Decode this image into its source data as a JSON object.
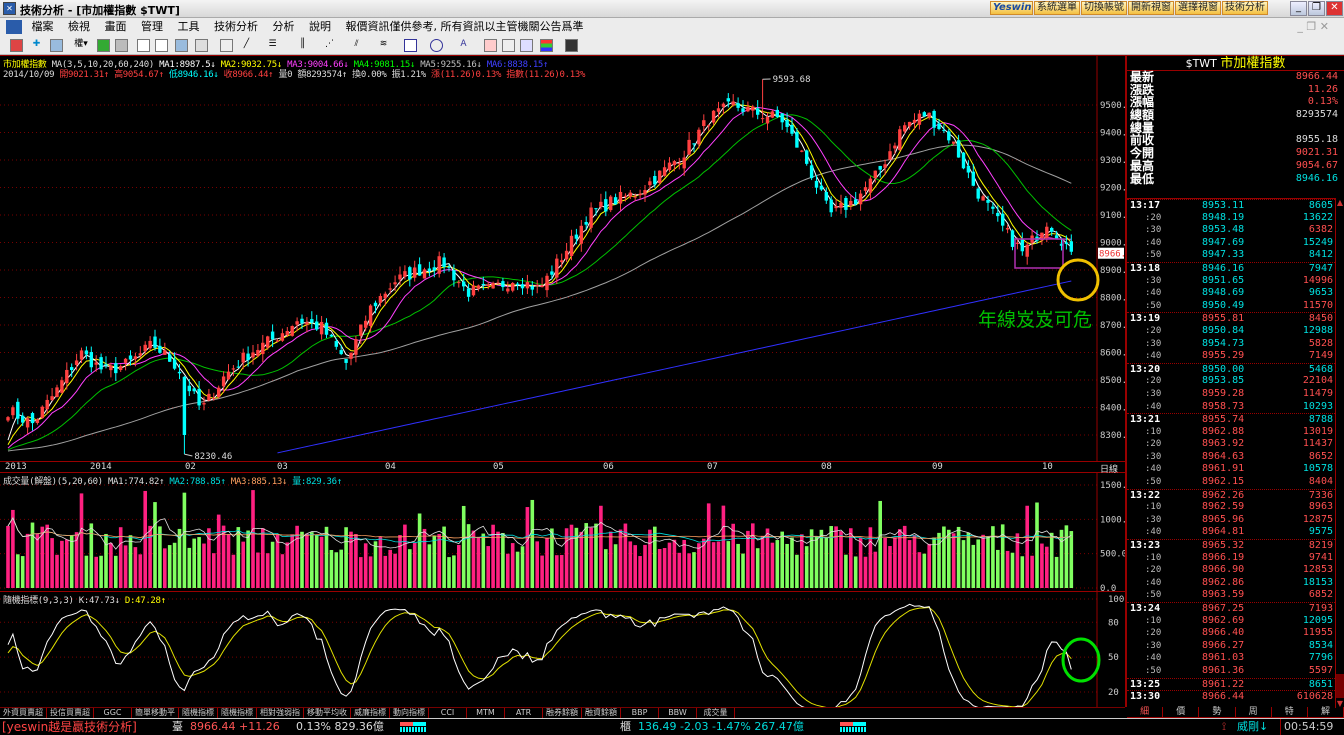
{
  "window": {
    "title": "技術分析 - [市加權指數 $TWT]",
    "app_buttons": [
      "系統選單",
      "切換帳號",
      "開新視窗",
      "選擇視窗",
      "技術分析"
    ],
    "logo": "Yeswin"
  },
  "menu": [
    "檔案",
    "檢視",
    "畫面",
    "管理",
    "工具",
    "技術分析",
    "分析",
    "說明",
    "報價資訊僅供參考, 所有資訊以主管機關公告爲準"
  ],
  "toolbar": {
    "rights_label": "權",
    "text_tool": "A"
  },
  "chart_header": {
    "symbol": "市加權指數",
    "ma_params": "MA(3,5,10,20,60,240)",
    "ma": [
      {
        "label": "MA1:8987.5",
        "arrow": "↓",
        "color": "#ffffff"
      },
      {
        "label": "MA2:9032.75",
        "arrow": "↓",
        "color": "#ffff00"
      },
      {
        "label": "MA3:9004.66",
        "arrow": "↓",
        "color": "#ff40ff"
      },
      {
        "label": "MA4:9081.15",
        "arrow": "↓",
        "color": "#00ff00"
      },
      {
        "label": "MA5:9255.16",
        "arrow": "↓",
        "color": "#c0c0c0"
      },
      {
        "label": "MA6:8838.15",
        "arrow": "↑",
        "color": "#4040ff"
      }
    ],
    "date": "2014/10/09",
    "ohlc": [
      {
        "t": "開9021.31↑",
        "c": "#ff4040"
      },
      {
        "t": "高9054.67↑",
        "c": "#ff4040"
      },
      {
        "t": "低8946.16↓",
        "c": "#00ffff"
      },
      {
        "t": "收8966.44↑",
        "c": "#ff4040"
      },
      {
        "t": "量0",
        "c": "#dddddd"
      },
      {
        "t": "額8293574↑",
        "c": "#dddddd"
      },
      {
        "t": "換0.00%",
        "c": "#dddddd"
      },
      {
        "t": "振1.21%",
        "c": "#dddddd"
      },
      {
        "t": "漲(11.26)0.13%",
        "c": "#ff4040"
      },
      {
        "t": "指數(11.26)0.13%",
        "c": "#ff4040"
      }
    ]
  },
  "chart_data": {
    "type": "candlestick",
    "approx_closes": [
      8390,
      8340,
      8460,
      8600,
      8530,
      8560,
      8630,
      8550,
      8390,
      8520,
      8600,
      8650,
      8720,
      8690,
      8560,
      8760,
      8860,
      8900,
      8930,
      8820,
      8830,
      8870,
      8830,
      8960,
      9100,
      9150,
      9180,
      9250,
      9330,
      9450,
      9500,
      9470,
      9450,
      9300,
      9100,
      9150,
      9250,
      9420,
      9470,
      9380,
      9200,
      9070,
      8960,
      9080,
      8966.44
    ],
    "high_label": "9593.68",
    "low_label": "8230.46",
    "last_price_tag": "8966.4",
    "price_ticks": [
      "9500.0",
      "9400.0",
      "9300.0",
      "9200.0",
      "9100.0",
      "9000.0",
      "8900.0",
      "8800.0",
      "8700.0",
      "8600.0",
      "8500.0",
      "8400.0",
      "8300.0"
    ],
    "date_ticks": [
      "2013",
      "2014",
      "02",
      "03",
      "04",
      "05",
      "06",
      "07",
      "08",
      "09",
      "10"
    ],
    "date_axis_label": "日線",
    "annotation": "年線岌岌可危",
    "colors": {
      "up": "#ff4040",
      "down": "#00ffff",
      "ma1": "#ffffff",
      "ma2": "#ffff00",
      "ma3": "#ff40ff",
      "ma4": "#00c000",
      "ma5": "#a0a0a0",
      "ma6": "#3030ff"
    }
  },
  "volume_pane": {
    "title": "成交量(解盤)(5,20,60)",
    "ma": [
      {
        "label": "MA1:774.82↑",
        "color": "#dddddd"
      },
      {
        "label": "MA2:788.85↑",
        "color": "#00e0e0"
      },
      {
        "label": "MA3:885.13↓",
        "color": "#ffa060"
      },
      {
        "label": "量:829.36↑",
        "color": "#00e0e0"
      }
    ],
    "ticks": [
      "1500.0",
      "1000.0",
      "500.0",
      "0.0"
    ],
    "last_volume": 829.36
  },
  "kd_pane": {
    "title": "隨機指標(9,3,3)",
    "k": "K:47.73↓",
    "d": "D:47.28↑",
    "ticks": [
      "100",
      "80",
      "50",
      "20"
    ]
  },
  "indicator_tabs": [
    "外資買賣超",
    "投信買賣超",
    "GGC",
    "簡單移動平",
    "隨機指標",
    "隨機指標",
    "相對強弱指",
    "移動平均收",
    "威廉指標",
    "動向指標",
    "CCI",
    "MTM",
    "ATR",
    "融券餘額",
    "融資餘額",
    "BBP",
    "BBW",
    "成交量"
  ],
  "quote": {
    "symbol": "$TWT",
    "name": "市加權指數",
    "prev_close": 8955.18,
    "rows": [
      {
        "l": "最新",
        "v": "8966.44",
        "c": "#ff5050"
      },
      {
        "l": "漲跌",
        "v": "11.26",
        "c": "#ff5050"
      },
      {
        "l": "漲幅",
        "v": "0.13%",
        "c": "#ff5050"
      },
      {
        "l": "總額",
        "v": "8293574",
        "c": "#dddddd"
      },
      {
        "l": "總量",
        "v": "",
        "c": "#dddddd"
      },
      {
        "l": "前收",
        "v": "8955.18",
        "c": "#dddddd"
      },
      {
        "l": "今開",
        "v": "9021.31",
        "c": "#ff5050"
      },
      {
        "l": "最高",
        "v": "9054.67",
        "c": "#ff5050"
      },
      {
        "l": "最低",
        "v": "8946.16",
        "c": "#00e0e0"
      }
    ],
    "ticks": [
      [
        "13:17",
        "8953.11",
        "8605",
        "d"
      ],
      [
        ":20",
        "8948.19",
        "13622",
        "d"
      ],
      [
        ":30",
        "8953.48",
        "6382",
        "u"
      ],
      [
        ":40",
        "8947.69",
        "15249",
        "d"
      ],
      [
        ":50",
        "8947.33",
        "8412",
        "d"
      ],
      [
        "13:18",
        "8946.16",
        "7947",
        "d"
      ],
      [
        ":30",
        "8951.65",
        "14996",
        "u"
      ],
      [
        ":40",
        "8948.69",
        "9653",
        "d"
      ],
      [
        ":50",
        "8950.49",
        "11570",
        "u"
      ],
      [
        "13:19",
        "8955.81",
        "8450",
        "u"
      ],
      [
        ":20",
        "8950.84",
        "12988",
        "d"
      ],
      [
        ":30",
        "8954.73",
        "5828",
        "u"
      ],
      [
        ":40",
        "8955.29",
        "7149",
        "u"
      ],
      [
        "13:20",
        "8950.00",
        "5468",
        "d"
      ],
      [
        ":20",
        "8953.85",
        "22104",
        "u"
      ],
      [
        ":30",
        "8959.28",
        "11479",
        "u"
      ],
      [
        ":40",
        "8958.73",
        "10293",
        "d"
      ],
      [
        "13:21",
        "8955.74",
        "8788",
        "d"
      ],
      [
        ":10",
        "8962.88",
        "13019",
        "u"
      ],
      [
        ":20",
        "8963.92",
        "11437",
        "u"
      ],
      [
        ":30",
        "8964.63",
        "8652",
        "u"
      ],
      [
        ":40",
        "8961.91",
        "10578",
        "d"
      ],
      [
        ":50",
        "8962.15",
        "8404",
        "u"
      ],
      [
        "13:22",
        "8962.26",
        "7336",
        "u"
      ],
      [
        ":10",
        "8962.59",
        "8963",
        "u"
      ],
      [
        ":30",
        "8965.96",
        "12875",
        "u"
      ],
      [
        ":40",
        "8964.81",
        "9575",
        "d"
      ],
      [
        "13:23",
        "8965.32",
        "8219",
        "u"
      ],
      [
        ":10",
        "8966.19",
        "9741",
        "u"
      ],
      [
        ":20",
        "8966.90",
        "12853",
        "u"
      ],
      [
        ":40",
        "8962.86",
        "18153",
        "d"
      ],
      [
        ":50",
        "8963.59",
        "6852",
        "u"
      ],
      [
        "13:24",
        "8967.25",
        "7193",
        "u"
      ],
      [
        ":10",
        "8962.69",
        "12095",
        "d"
      ],
      [
        ":20",
        "8966.40",
        "11955",
        "u"
      ],
      [
        ":30",
        "8966.27",
        "8534",
        "d"
      ],
      [
        ":40",
        "8961.03",
        "7796",
        "d"
      ],
      [
        ":50",
        "8961.36",
        "5597",
        "u"
      ],
      [
        "13:25",
        "8961.22",
        "8651",
        "d"
      ],
      [
        "13:30",
        "8966.44",
        "610628",
        "u"
      ]
    ],
    "tabs": [
      "細",
      "價",
      "勢",
      "周",
      "特",
      "解"
    ]
  },
  "status": {
    "brand": "[yeswin越是贏技術分析]",
    "twse_label": "臺",
    "twse_price": "8966.44 +11.26",
    "twse_rest": "0.13% 829.36億",
    "otc_label": "櫃",
    "otc_values": "136.49 -2.03 -1.47% 267.47億",
    "alert": "威剛↓",
    "time": "00:54:59"
  }
}
